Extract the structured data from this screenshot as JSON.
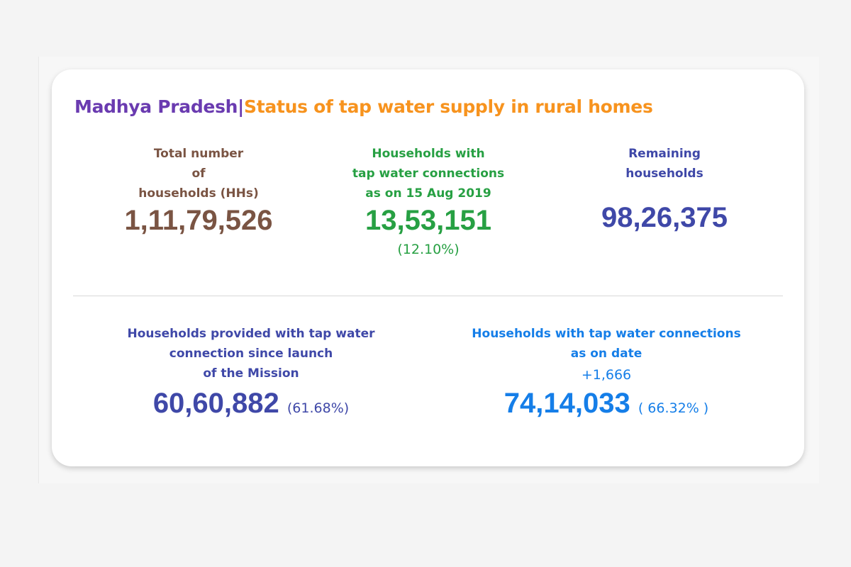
{
  "header": {
    "state": "Madhya Pradesh",
    "separator": "|",
    "subtitle": "Status of tap water supply in rural homes"
  },
  "top_stats": [
    {
      "label_lines": [
        "Total number",
        "of",
        "households (HHs)"
      ],
      "value": "1,11,79,526",
      "color": "#7a5443"
    },
    {
      "label_lines": [
        "Households with",
        "tap water connections",
        "as on 15 Aug 2019"
      ],
      "value": "13,53,151",
      "percent": "(12.10%)",
      "color": "#27a043"
    },
    {
      "label_lines": [
        "Remaining",
        "households"
      ],
      "value": "98,26,375",
      "color": "#3f48a8"
    }
  ],
  "bottom_stats": [
    {
      "label_lines": [
        "Households provided with tap water",
        "connection since launch",
        "of the Mission"
      ],
      "value": "60,60,882",
      "percent": "(61.68%)",
      "color": "#3f48a8"
    },
    {
      "label_lines": [
        "Households with tap water connections",
        "as on date"
      ],
      "delta": "+1,666",
      "value": "74,14,033",
      "percent": "( 66.32% )",
      "color": "#157ee8"
    }
  ],
  "colors": {
    "title_state": "#6a3bb0",
    "title_subtitle": "#f7931e"
  }
}
